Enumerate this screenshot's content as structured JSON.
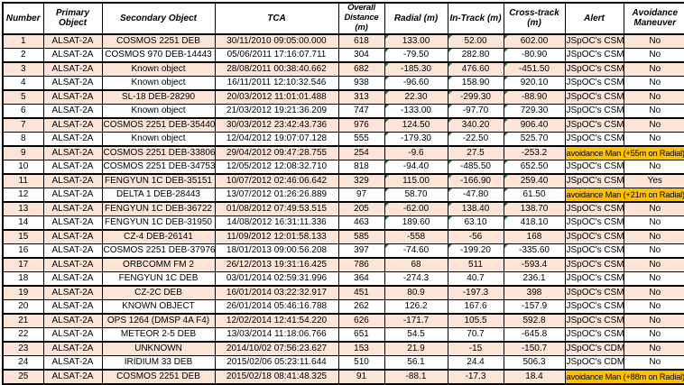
{
  "colors": {
    "band_row": "#FCE4D6",
    "highlight": "#FFC000",
    "flag_triangle": "#1E7145",
    "border": "#000000"
  },
  "table": {
    "headers": [
      "Number",
      "Primary Object",
      "Secondary Object",
      "TCA",
      "Overall Distance (m)",
      "Radial (m)",
      "In-Track (m)",
      "Cross-track (m)",
      "Alert",
      "Avoidance Maneuver"
    ],
    "rows": [
      {
        "number": "1",
        "primary_object": "ALSAT-2A",
        "secondary_object": "COSMOS 2251 DEB",
        "tca": "30/11/2010 09:05:00.000",
        "overall_distance_m": "618",
        "radial_m": "133.00",
        "in_track_m": "52.00",
        "cross_track_m": "602.00",
        "alert": "JSpOC's CSM",
        "avoidance_maneuver": "No",
        "error_indicator": true
      },
      {
        "number": "2",
        "primary_object": "ALSAT-2A",
        "secondary_object": "COSMOS 970 DEB-14443",
        "tca": "05/06/2011 17:16:07.711",
        "overall_distance_m": "304",
        "radial_m": "-79.50",
        "in_track_m": "282.80",
        "cross_track_m": "-80.90",
        "alert": "JSpOC's CSM",
        "avoidance_maneuver": "No",
        "error_indicator": true
      },
      {
        "number": "3",
        "primary_object": "ALSAT-2A",
        "secondary_object": "Known object",
        "tca": "28/08/2011 00:38:40.662",
        "overall_distance_m": "682",
        "radial_m": "-185.30",
        "in_track_m": "476.60",
        "cross_track_m": "-451.50",
        "alert": "JSpOC's CSM",
        "avoidance_maneuver": "No",
        "error_indicator": true
      },
      {
        "number": "4",
        "primary_object": "ALSAT-2A",
        "secondary_object": "Known object",
        "tca": "16/11/2011 12:10:32.546",
        "overall_distance_m": "938",
        "radial_m": "-96.60",
        "in_track_m": "158.90",
        "cross_track_m": "920.10",
        "alert": "JSpOC's CSM",
        "avoidance_maneuver": "No",
        "error_indicator": true
      },
      {
        "number": "5",
        "primary_object": "ALSAT-2A",
        "secondary_object": "SL-18 DEB-28290",
        "tca": "20/03/2012 11:01:01.488",
        "overall_distance_m": "313",
        "radial_m": "22.30",
        "in_track_m": "-299.30",
        "cross_track_m": "-88.90",
        "alert": "JSpOC's CSM",
        "avoidance_maneuver": "No",
        "error_indicator": true
      },
      {
        "number": "6",
        "primary_object": "ALSAT-2A",
        "secondary_object": "Known object",
        "tca": "21/03/2012 19:21:36.209",
        "overall_distance_m": "747",
        "radial_m": "-133.00",
        "in_track_m": "-97.70",
        "cross_track_m": "729.30",
        "alert": "JSpOC's CSM",
        "avoidance_maneuver": "No",
        "error_indicator": true
      },
      {
        "number": "7",
        "primary_object": "ALSAT-2A",
        "secondary_object": "COSMOS 2251 DEB-35440",
        "tca": "30/03/2012 23:42:43.736",
        "overall_distance_m": "976",
        "radial_m": "124.50",
        "in_track_m": "340.20",
        "cross_track_m": "906.40",
        "alert": "JSpOC's CSM",
        "avoidance_maneuver": "No",
        "error_indicator": true
      },
      {
        "number": "8",
        "primary_object": "ALSAT-2A",
        "secondary_object": "Known object",
        "tca": "12/04/2012 19:07:07.128",
        "overall_distance_m": "555",
        "radial_m": "-179.30",
        "in_track_m": "-22.50",
        "cross_track_m": "525.70",
        "alert": "JSpOC's CSM",
        "avoidance_maneuver": "No",
        "error_indicator": true
      },
      {
        "number": "9",
        "primary_object": "ALSAT-2A",
        "secondary_object": "COSMOS 2251 DEB-33806",
        "tca": "29/04/2012 09:47:28.755",
        "overall_distance_m": "254",
        "radial_m": "-9.6",
        "in_track_m": "27.5",
        "cross_track_m": "-253.2",
        "alert_avoidance_merged": "avoidance Man (+55m on Radial)",
        "error_indicator": false
      },
      {
        "number": "10",
        "primary_object": "ALSAT-2A",
        "secondary_object": "COSMOS 2251 DEB-34753",
        "tca": "12/05/2012 12:08:32.710",
        "overall_distance_m": "818",
        "radial_m": "-94.40",
        "in_track_m": "-485.50",
        "cross_track_m": "652.50",
        "alert": "JSpOC's CSM",
        "avoidance_maneuver": "No",
        "error_indicator": true
      },
      {
        "number": "11",
        "primary_object": "ALSAT-2A",
        "secondary_object": "FENGYUN 1C DEB-35151",
        "tca": "10/07/2012 02:46:06.642",
        "overall_distance_m": "329",
        "radial_m": "115.00",
        "in_track_m": "-166.90",
        "cross_track_m": "259.40",
        "alert": "JSpOC's CSM",
        "avoidance_maneuver": "Yes",
        "error_indicator": true
      },
      {
        "number": "12",
        "primary_object": "ALSAT-2A",
        "secondary_object": "DELTA 1 DEB-28443",
        "tca": "13/07/2012 01:26:26.889",
        "overall_distance_m": "97",
        "radial_m": "58.70",
        "in_track_m": "-47.80",
        "cross_track_m": "61.50",
        "alert_avoidance_merged": "avoidance Man (+21m on Radial)",
        "error_indicator": true
      },
      {
        "number": "13",
        "primary_object": "ALSAT-2A",
        "secondary_object": "FENGYUN 1C DEB-36722",
        "tca": "01/08/2012 07:49:53.515",
        "overall_distance_m": "205",
        "radial_m": "-62.00",
        "in_track_m": "138.40",
        "cross_track_m": "138.70",
        "alert": "JSpOC's CSM",
        "avoidance_maneuver": "No",
        "error_indicator": true
      },
      {
        "number": "14",
        "primary_object": "ALSAT-2A",
        "secondary_object": "FENGYUN 1C DEB-31950",
        "tca": "14/08/2012 16:31:11.336",
        "overall_distance_m": "463",
        "radial_m": "189.60",
        "in_track_m": "63.10",
        "cross_track_m": "418.10",
        "alert": "JSpOC's CSM",
        "avoidance_maneuver": "No",
        "error_indicator": true
      },
      {
        "number": "15",
        "primary_object": "ALSAT-2A",
        "secondary_object": "CZ-4 DEB-26141",
        "tca": "11/09/2012 12:01:58.133",
        "overall_distance_m": "585",
        "radial_m": "-558",
        "in_track_m": "-56",
        "cross_track_m": "168",
        "alert": "JSpOC's CSM",
        "avoidance_maneuver": "No",
        "error_indicator": false
      },
      {
        "number": "16",
        "primary_object": "ALSAT-2A",
        "secondary_object": "COSMOS 2251 DEB-37976",
        "tca": "18/01/2013 09:00:56.208",
        "overall_distance_m": "397",
        "radial_m": "-74.60",
        "in_track_m": "-199.20",
        "cross_track_m": "-335.60",
        "alert": "JSpOC's CSM",
        "avoidance_maneuver": "No",
        "error_indicator": true
      },
      {
        "number": "17",
        "primary_object": "ALSAT-2A",
        "secondary_object": "ORBCOMM FM 2",
        "tca": "26/12/2013 19:31:16.425",
        "overall_distance_m": "786",
        "radial_m": "68",
        "in_track_m": "511",
        "cross_track_m": "-593.4",
        "alert": "JSpOC's CSM",
        "avoidance_maneuver": "No",
        "error_indicator": false
      },
      {
        "number": "18",
        "primary_object": "ALSAT-2A",
        "secondary_object": "FENGYUN 1C DEB",
        "tca": "03/01/2014 02:59:31.996",
        "overall_distance_m": "364",
        "radial_m": "-274.3",
        "in_track_m": "40.7",
        "cross_track_m": "236.1",
        "alert": "JSpOC's CSM",
        "avoidance_maneuver": "No",
        "error_indicator": false
      },
      {
        "number": "19",
        "primary_object": "ALSAT-2A",
        "secondary_object": "CZ-2C DEB",
        "tca": "16/01/2014 03:22:32.917",
        "overall_distance_m": "451",
        "radial_m": "80.9",
        "in_track_m": "-197.3",
        "cross_track_m": "398",
        "alert": "JSpOC's CSM",
        "avoidance_maneuver": "No",
        "error_indicator": false
      },
      {
        "number": "20",
        "primary_object": "ALSAT-2A",
        "secondary_object": "KNOWN OBJECT",
        "tca": "26/01/2014 05:46:16.788",
        "overall_distance_m": "262",
        "radial_m": "126.2",
        "in_track_m": "167.6",
        "cross_track_m": "-157.9",
        "alert": "JSpOC's CSM",
        "avoidance_maneuver": "No",
        "error_indicator": false
      },
      {
        "number": "21",
        "primary_object": "ALSAT-2A",
        "secondary_object": "OPS 1264 (DMSP 4A F4)",
        "tca": "12/02/2014 12:41:54.220",
        "overall_distance_m": "626",
        "radial_m": "-171.7",
        "in_track_m": "105.5",
        "cross_track_m": "592.8",
        "alert": "JSpOC's CSM",
        "avoidance_maneuver": "No",
        "error_indicator": false
      },
      {
        "number": "22",
        "primary_object": "ALSAT-2A",
        "secondary_object": "METEOR 2-5 DEB",
        "tca": "13/03/2014 11:18:06.766",
        "overall_distance_m": "651",
        "radial_m": "54.5",
        "in_track_m": "70.7",
        "cross_track_m": "-645.8",
        "alert": "JSpOC's CSM",
        "avoidance_maneuver": "No",
        "error_indicator": false
      },
      {
        "number": "23",
        "primary_object": "ALSAT-2A",
        "secondary_object": "UNKNOWN",
        "tca": "2014/10/02 07:56:23.627",
        "overall_distance_m": "153",
        "radial_m": "21.9",
        "in_track_m": "-15",
        "cross_track_m": "-150.7",
        "alert": "JSpOC's CDM",
        "avoidance_maneuver": "No",
        "error_indicator": false
      },
      {
        "number": "24",
        "primary_object": "ALSAT-2A",
        "secondary_object": "IRIDIUM 33 DEB",
        "tca": "2015/02/06 05:23:11.644",
        "overall_distance_m": "510",
        "radial_m": "56.1",
        "in_track_m": "24.4",
        "cross_track_m": "506.3",
        "alert": "JSpOC's CDM",
        "avoidance_maneuver": "No",
        "error_indicator": false
      },
      {
        "number": "25",
        "primary_object": "ALSAT-2A",
        "secondary_object": "COSMOS 2251 DEB",
        "tca": "2015/02/18 08:41:48.325",
        "overall_distance_m": "91",
        "radial_m": "-88.1",
        "in_track_m": "-17.3",
        "cross_track_m": "18.4",
        "alert_avoidance_merged": "avoidance Man (+88m on Radial)",
        "error_indicator": false
      }
    ]
  }
}
